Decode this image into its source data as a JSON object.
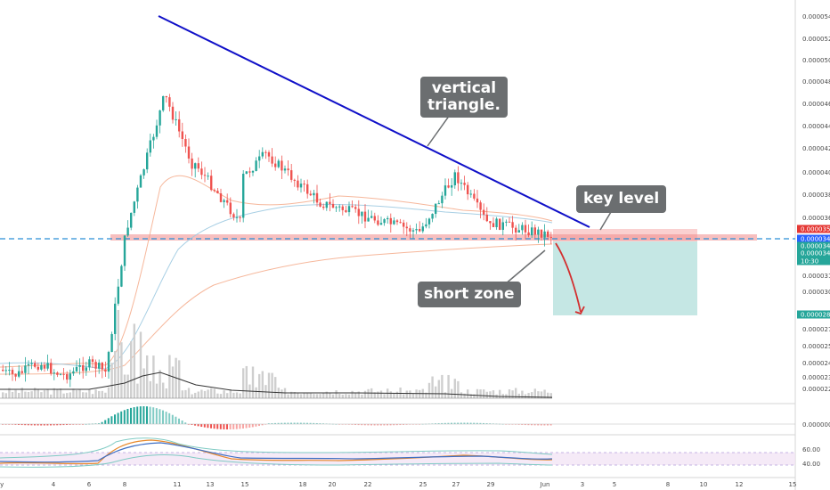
{
  "chart_data": {
    "type": "candlestick",
    "x_ticks": [
      "ay",
      "4",
      "6",
      "8",
      "11",
      "13",
      "15",
      "18",
      "20",
      "22",
      "25",
      "27",
      "29",
      "Jun",
      "3",
      "5",
      "8",
      "10",
      "12",
      "15"
    ],
    "y_ticks": [
      "0.00005400",
      "0.00005200",
      "0.00005000",
      "0.00004800",
      "0.00004600",
      "0.00004400",
      "0.00004200",
      "0.00004000",
      "0.00003800",
      "0.00003600",
      "0.00003150",
      "0.00003000",
      "0.00002700",
      "0.00002580",
      "0.00002460",
      "0.00002350",
      "0.00002250"
    ],
    "price_badges": [
      {
        "label": "0.00003530",
        "color": "#e53935"
      },
      {
        "label": "0.00003442",
        "color": "#2962ff"
      },
      {
        "label": "0.00003438",
        "color": "#26a69a"
      },
      {
        "label": "0.00003424",
        "color": "#26a69a"
      },
      {
        "label": "10:30",
        "color": "#26a69a"
      },
      {
        "label": "0.00002829",
        "color": "#26a69a"
      }
    ],
    "macd_ticks": [
      "0.00000000"
    ],
    "rsi_ticks": [
      "60.00",
      "40.00"
    ],
    "annotations": {
      "triangle": "vertical\ntriangle.",
      "key_level": "key level",
      "short_zone": "short zone"
    },
    "colors": {
      "up": "#26a69a",
      "down": "#ef5350",
      "trendline": "#1010c8",
      "zone_red": "#f4a6a6",
      "zone_target": "#b2dfdb",
      "dashed_level": "#2a8fd6"
    }
  },
  "callouts": {
    "triangle_l1": "vertical",
    "triangle_l2": "triangle.",
    "key_level": "key level",
    "short_zone": "short zone"
  }
}
